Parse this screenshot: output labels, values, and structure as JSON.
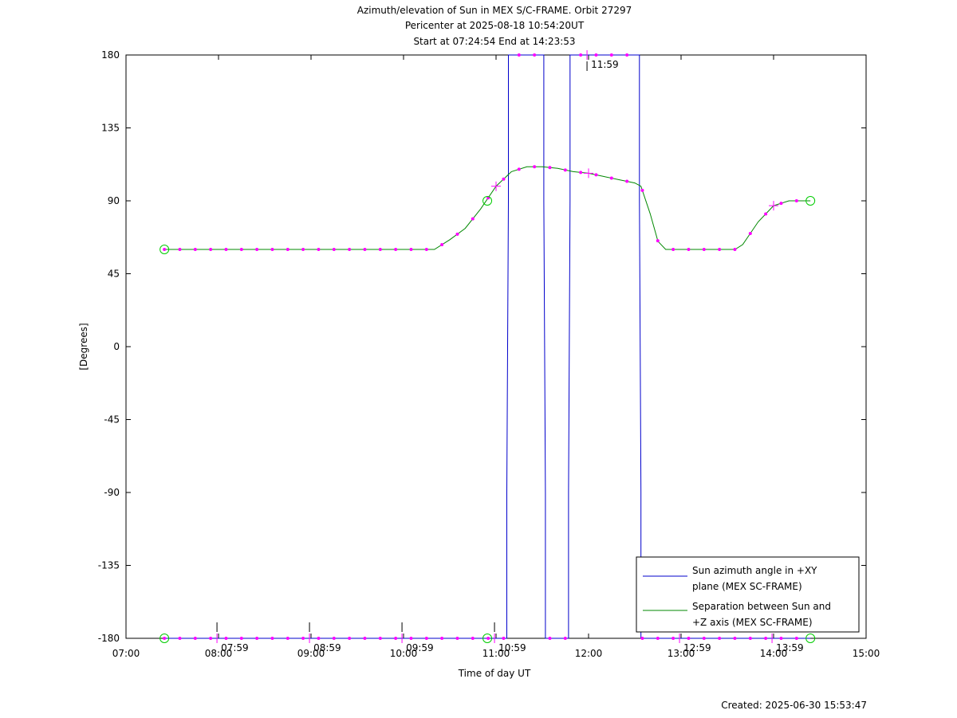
{
  "chart_data": {
    "type": "line",
    "title_lines": [
      "Azimuth/elevation of Sun in MEX S/C-FRAME.  Orbit 27297",
      "Pericenter at 2025-08-18 10:54:20UT",
      "Start at 07:24:54 End at 14:23:53"
    ],
    "xlabel": "Time of day UT",
    "ylabel": "[Degrees]",
    "xlim": [
      "07:00",
      "15:00"
    ],
    "ylim": [
      -180,
      180
    ],
    "x_ticks": [
      "07:00",
      "08:00",
      "09:00",
      "10:00",
      "11:00",
      "12:00",
      "13:00",
      "14:00",
      "15:00"
    ],
    "y_ticks": [
      "180",
      "135",
      "90",
      "45",
      "0",
      "-45",
      "-90",
      "-135",
      "-180"
    ],
    "hour_annotations": [
      {
        "time": "07:59",
        "label": "07:59",
        "y": -180
      },
      {
        "time": "08:59",
        "label": "08:59",
        "y": -180
      },
      {
        "time": "09:59",
        "label": "09:59",
        "y": -180
      },
      {
        "time": "10:59",
        "label": "10:59",
        "y": -180
      },
      {
        "time": "11:59",
        "label": "11:59",
        "y": 180
      },
      {
        "time": "12:59",
        "label": "12:59",
        "y": -180
      },
      {
        "time": "13:59",
        "label": "13:59",
        "y": -180
      }
    ],
    "legend_position": "bottom-right",
    "grid": false,
    "series": [
      {
        "name_lines": [
          "Sun azimuth angle in +XY",
          "plane (MEX SC-FRAME)"
        ],
        "color": "#0000cc",
        "points": [
          [
            "07:24:54",
            -180
          ],
          [
            "11:07",
            -180
          ],
          [
            "11:07",
            -90
          ],
          [
            "11:08",
            90
          ],
          [
            "11:08",
            180
          ],
          [
            "11:31",
            180
          ],
          [
            "11:31",
            90
          ],
          [
            "11:32",
            -90
          ],
          [
            "11:32",
            -180
          ],
          [
            "11:47",
            -180
          ],
          [
            "11:47",
            -90
          ],
          [
            "11:48",
            90
          ],
          [
            "11:48",
            180
          ],
          [
            "12:33",
            180
          ],
          [
            "12:33",
            90
          ],
          [
            "12:34",
            -90
          ],
          [
            "12:34",
            -180
          ],
          [
            "14:23:53",
            -180
          ]
        ]
      },
      {
        "name_lines": [
          "Separation between Sun and",
          "+Z axis (MEX SC-FRAME)"
        ],
        "color": "#008800",
        "points": [
          [
            "07:24:54",
            60
          ],
          [
            "10:20",
            60
          ],
          [
            "10:30",
            66
          ],
          [
            "10:40",
            73
          ],
          [
            "10:50",
            85
          ],
          [
            "11:00",
            99
          ],
          [
            "11:10",
            108
          ],
          [
            "11:20",
            111
          ],
          [
            "11:30",
            111
          ],
          [
            "11:40",
            110
          ],
          [
            "11:50",
            108
          ],
          [
            "12:00",
            107
          ],
          [
            "12:10",
            105
          ],
          [
            "12:20",
            103
          ],
          [
            "12:30",
            101
          ],
          [
            "12:34",
            99
          ],
          [
            "12:40",
            82
          ],
          [
            "12:45",
            65
          ],
          [
            "12:50",
            60
          ],
          [
            "13:35",
            60
          ],
          [
            "13:40",
            63
          ],
          [
            "13:50",
            77
          ],
          [
            "14:00",
            87
          ],
          [
            "14:10",
            90
          ],
          [
            "14:23:53",
            90
          ]
        ]
      }
    ],
    "markers": {
      "dot_color": "#ff00ff",
      "start_end_circle_color": "#00cc00",
      "circle_points": [
        [
          "07:24:54",
          60
        ],
        [
          "07:24:54",
          -180
        ],
        [
          "10:54:20",
          90
        ],
        [
          "10:54:20",
          -180
        ],
        [
          "14:23:53",
          90
        ],
        [
          "14:23:53",
          -180
        ]
      ],
      "cross_points": [
        [
          "11:00",
          99
        ],
        [
          "12:00",
          107
        ],
        [
          "14:00",
          87
        ]
      ]
    },
    "footer": "Created: 2025-06-30 15:53:47"
  }
}
